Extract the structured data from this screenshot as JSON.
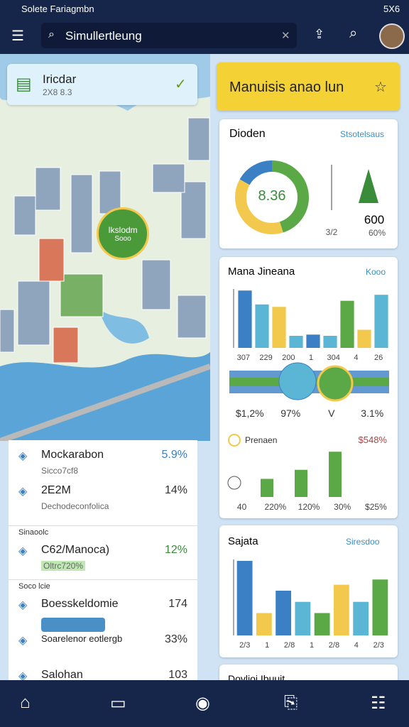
{
  "status_bar": {
    "title": "Solete Fariagmbn",
    "time": "5X6"
  },
  "search": {
    "placeholder": "Simullertleung"
  },
  "map": {
    "badge_title": "Iricdar",
    "badge_sub": "2X8 8.3",
    "pin_label": "Ikslodm",
    "pin_sub": "Sooo"
  },
  "list": [
    {
      "title": "Mockarabon",
      "sub": "Sicco7cf8",
      "value": "5.9%"
    },
    {
      "title": "2E2M",
      "sub": "Dechodeconfolica",
      "value": "14%"
    },
    {
      "header": "Sinaoolc",
      "title": "C62/Manoca)",
      "sub": "Oltrc720%",
      "value": "12%"
    },
    {
      "header": "Soco lcie",
      "title": "Boesskeldomie",
      "value": "174"
    },
    {
      "title": "Soarelenor eotlergb",
      "value": "33%"
    },
    {
      "title": "Salohan",
      "value": "103"
    }
  ],
  "banner": {
    "title": "Manuisis anao lun"
  },
  "donut_card": {
    "title": "Dioden",
    "link": "Stsotelsaus",
    "center": "8.36",
    "segments": [
      {
        "value": 45,
        "color": "#5aa846"
      },
      {
        "value": 38,
        "color": "#f2c94c"
      },
      {
        "value": 17,
        "color": "#3b7fc4"
      }
    ],
    "side_small": "3/2",
    "side_values": [
      "600",
      "60%"
    ]
  },
  "bar_card": {
    "title": "Mana Jineana",
    "link": "Kooo",
    "values": [
      95,
      72,
      68,
      20,
      22,
      20,
      78,
      30,
      88
    ],
    "colors": [
      "#3b7fc4",
      "#5bb6d6",
      "#f2c94c",
      "#5bb6d6",
      "#3b7fc4",
      "#5bb6d6",
      "#5aa846",
      "#f2c94c",
      "#5bb6d6"
    ],
    "axis_texts": [
      "307",
      "229",
      "200",
      "1",
      "304",
      "4",
      "26"
    ],
    "stats": [
      "$1,2%",
      "97%",
      "V",
      "3.1%"
    ],
    "legend": "Prenaen",
    "legend_value": "$548%",
    "mini_values": [
      30,
      45,
      75
    ],
    "mini_color": "#5aa846",
    "mini_labels": [
      "40",
      "220%",
      "120%",
      "30%",
      "$25%"
    ]
  },
  "sajata_card": {
    "title": "Sajata",
    "link": "Siresdoo",
    "values": [
      100,
      30,
      60,
      45,
      30,
      68,
      45,
      75
    ],
    "colors": [
      "#3b7fc4",
      "#f2c94c",
      "#3b7fc4",
      "#5bb6d6",
      "#5aa846",
      "#f2c94c",
      "#5bb6d6",
      "#5aa846"
    ],
    "axis_texts": [
      "2/3",
      "1",
      "2/8",
      "1",
      "2/8",
      "4",
      "2/3"
    ]
  },
  "footer_card": {
    "title": "Dovlioi Ibuuit"
  }
}
